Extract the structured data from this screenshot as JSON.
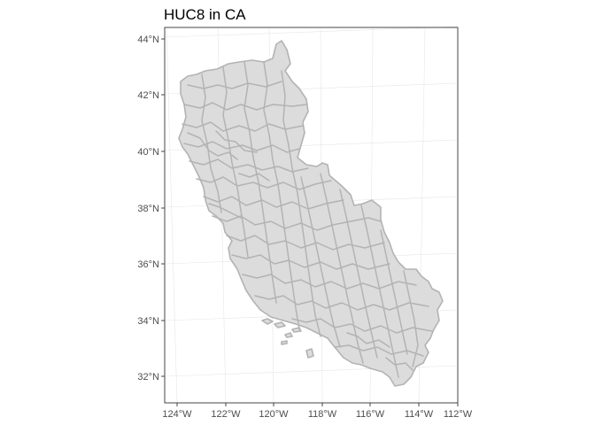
{
  "title": "HUC8 in CA",
  "lat_labels": [
    "44°N",
    "42°N",
    "40°N",
    "38°N",
    "36°N",
    "34°N",
    "32°N"
  ],
  "lon_labels": [
    "124°W",
    "122°W",
    "120°W",
    "118°W",
    "116°W",
    "114°W",
    "112°W"
  ],
  "colors": {
    "fill": "#dcdcdc",
    "boundary": "#b3b3b3",
    "graticule": "#e6e6e6",
    "panel_border": "#333333",
    "tick_text": "#4d4d4d"
  },
  "chart_data": {
    "type": "map",
    "layer": "HUC8 watershed boundaries",
    "lat_ticks": [
      44,
      42,
      40,
      38,
      36,
      34,
      32
    ],
    "lon_ticks": [
      -124,
      -122,
      -120,
      -118,
      -116,
      -114,
      -112
    ],
    "grid": true
  }
}
